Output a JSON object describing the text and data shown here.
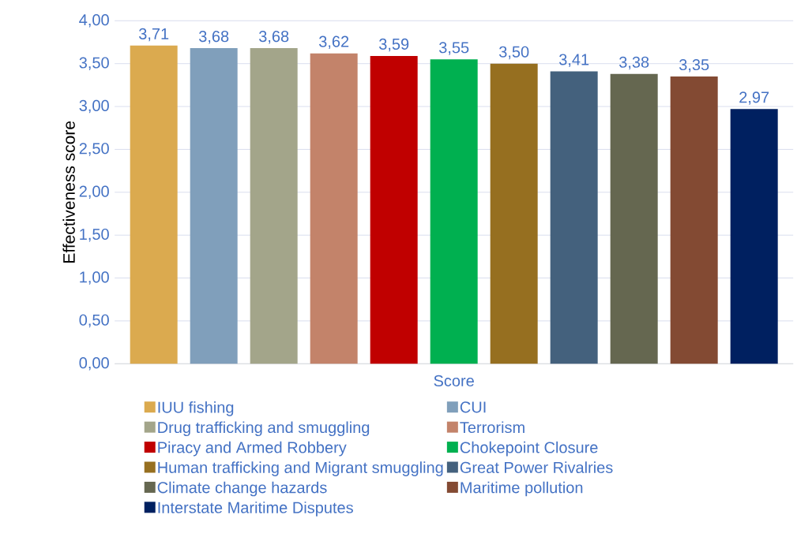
{
  "chart_data": {
    "type": "bar",
    "ylabel": "Effectiveness score",
    "categories": [
      "Score"
    ],
    "series": [
      {
        "name": "IUU fishing",
        "color": "#dbaa4f",
        "values": [
          3.71
        ],
        "value_labels": [
          "3,71"
        ]
      },
      {
        "name": "CUI",
        "color": "#809fbb",
        "values": [
          3.68
        ],
        "value_labels": [
          "3,68"
        ]
      },
      {
        "name": "Drug trafficking and smuggling",
        "color": "#a3a58a",
        "values": [
          3.68
        ],
        "value_labels": [
          "3,68"
        ]
      },
      {
        "name": "Terrorism",
        "color": "#c3836a",
        "values": [
          3.62
        ],
        "value_labels": [
          "3,62"
        ]
      },
      {
        "name": "Piracy and Armed Robbery",
        "color": "#c00000",
        "values": [
          3.59
        ],
        "value_labels": [
          "3,59"
        ]
      },
      {
        "name": "Chokepoint Closure",
        "color": "#00b050",
        "values": [
          3.55
        ],
        "value_labels": [
          "3,55"
        ]
      },
      {
        "name": "Human trafficking and Migrant smuggling",
        "color": "#966f20",
        "values": [
          3.5
        ],
        "value_labels": [
          "3,50"
        ]
      },
      {
        "name": "Great Power Rivalries",
        "color": "#44617d",
        "values": [
          3.41
        ],
        "value_labels": [
          "3,41"
        ]
      },
      {
        "name": "Climate change hazards",
        "color": "#656750",
        "values": [
          3.38
        ],
        "value_labels": [
          "3,38"
        ]
      },
      {
        "name": "Maritime pollution",
        "color": "#834a33",
        "values": [
          3.35
        ],
        "value_labels": [
          "3,35"
        ]
      },
      {
        "name": "Interstate Maritime Disputes",
        "color": "#002060",
        "values": [
          2.97
        ],
        "value_labels": [
          "2,97"
        ]
      }
    ],
    "ylim": [
      0,
      4
    ],
    "yticks": [
      {
        "value": 0,
        "label": "0,00"
      },
      {
        "value": 0.5,
        "label": "0,50"
      },
      {
        "value": 1,
        "label": "1,00"
      },
      {
        "value": 1.5,
        "label": "1,50"
      },
      {
        "value": 2,
        "label": "2,00"
      },
      {
        "value": 2.5,
        "label": "2,50"
      },
      {
        "value": 3,
        "label": "3,00"
      },
      {
        "value": 3.5,
        "label": "3,50"
      },
      {
        "value": 4,
        "label": "4,00"
      }
    ],
    "grid": "y",
    "legend": "bottom"
  }
}
